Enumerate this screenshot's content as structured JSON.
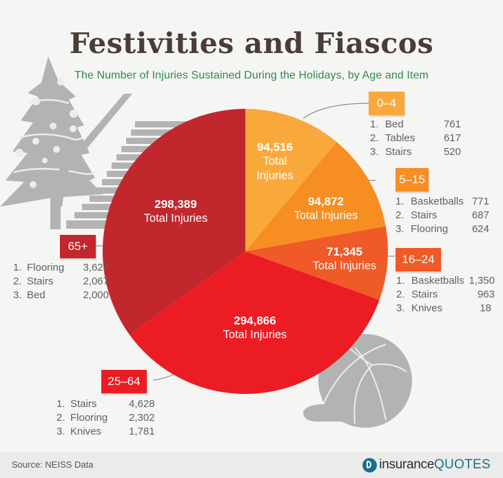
{
  "header": {
    "title": "Festivities and Fiascos",
    "subtitle": "The Number of Injuries Sustained During the Holidays, by Age and Item"
  },
  "footer": {
    "source": "Source: NEISS Data",
    "brand_part1": "insurance",
    "brand_part2": "QUOTES"
  },
  "total_label": "Total Injuries",
  "total_label_line1": "Total",
  "total_label_line2": "Injuries",
  "colors": {
    "0-4": "#f9a93b",
    "5-15": "#f68e22",
    "16-24": "#f05a28",
    "25-64": "#ec1c24",
    "65+": "#c1272d",
    "title": "#4a3c37",
    "subtitle": "#2e8a4c",
    "decor": "#b3b3b3"
  },
  "groups": [
    {
      "age": "0–4",
      "total": "94,516",
      "items": [
        {
          "rank": "1.",
          "name": "Bed",
          "value": "761"
        },
        {
          "rank": "2.",
          "name": "Tables",
          "value": "617"
        },
        {
          "rank": "3.",
          "name": "Stairs",
          "value": "520"
        }
      ]
    },
    {
      "age": "5–15",
      "total": "94,872",
      "items": [
        {
          "rank": "1.",
          "name": "Basketballs",
          "value": "771"
        },
        {
          "rank": "2.",
          "name": "Stairs",
          "value": "687"
        },
        {
          "rank": "3.",
          "name": "Flooring",
          "value": "624"
        }
      ]
    },
    {
      "age": "16–24",
      "total": "71,345",
      "items": [
        {
          "rank": "1.",
          "name": "Basketballs",
          "value": "1,350"
        },
        {
          "rank": "2.",
          "name": "Stairs",
          "value": "963"
        },
        {
          "rank": "3.",
          "name": "Knives",
          "value": "18"
        }
      ]
    },
    {
      "age": "25–64",
      "total": "294,866",
      "items": [
        {
          "rank": "1.",
          "name": "Stairs",
          "value": "4,628"
        },
        {
          "rank": "2.",
          "name": "Flooring",
          "value": "2,302"
        },
        {
          "rank": "3.",
          "name": "Knives",
          "value": "1,781"
        }
      ]
    },
    {
      "age": "65+",
      "total": "298,389",
      "items": [
        {
          "rank": "1.",
          "name": "Flooring",
          "value": "3,627"
        },
        {
          "rank": "2.",
          "name": "Stairs",
          "value": "2,067"
        },
        {
          "rank": "3.",
          "name": "Bed",
          "value": "2,000"
        }
      ]
    }
  ],
  "chart_data": {
    "type": "pie",
    "title": "Festivities and Fiascos",
    "subtitle": "The Number of Injuries Sustained During the Holidays, by Age and Item",
    "categories": [
      "0–4",
      "5–15",
      "16–24",
      "25–64",
      "65+"
    ],
    "values": [
      94516,
      94872,
      71345,
      294866,
      298389
    ],
    "value_labels": [
      "94,516 Total Injuries",
      "94,872 Total Injuries",
      "71,345 Total Injuries",
      "294,866 Total Injuries",
      "298,389 Total Injuries"
    ],
    "colors": [
      "#f9a93b",
      "#f68e22",
      "#f05a28",
      "#ec1c24",
      "#c1272d"
    ],
    "start_angle": "12 o'clock, clockwise",
    "annotations": {
      "0–4": [
        [
          "Bed",
          761
        ],
        [
          "Tables",
          617
        ],
        [
          "Stairs",
          520
        ]
      ],
      "5–15": [
        [
          "Basketballs",
          771
        ],
        [
          "Stairs",
          687
        ],
        [
          "Flooring",
          624
        ]
      ],
      "16–24": [
        [
          "Basketballs",
          1350
        ],
        [
          "Stairs",
          963
        ],
        [
          "Knives",
          18
        ]
      ],
      "25–64": [
        [
          "Stairs",
          4628
        ],
        [
          "Flooring",
          2302
        ],
        [
          "Knives",
          1781
        ]
      ],
      "65+": [
        [
          "Flooring",
          3627
        ],
        [
          "Stairs",
          2067
        ],
        [
          "Bed",
          2000
        ]
      ]
    },
    "source": "NEISS Data",
    "legend": "none (callout boxes per slice)"
  }
}
